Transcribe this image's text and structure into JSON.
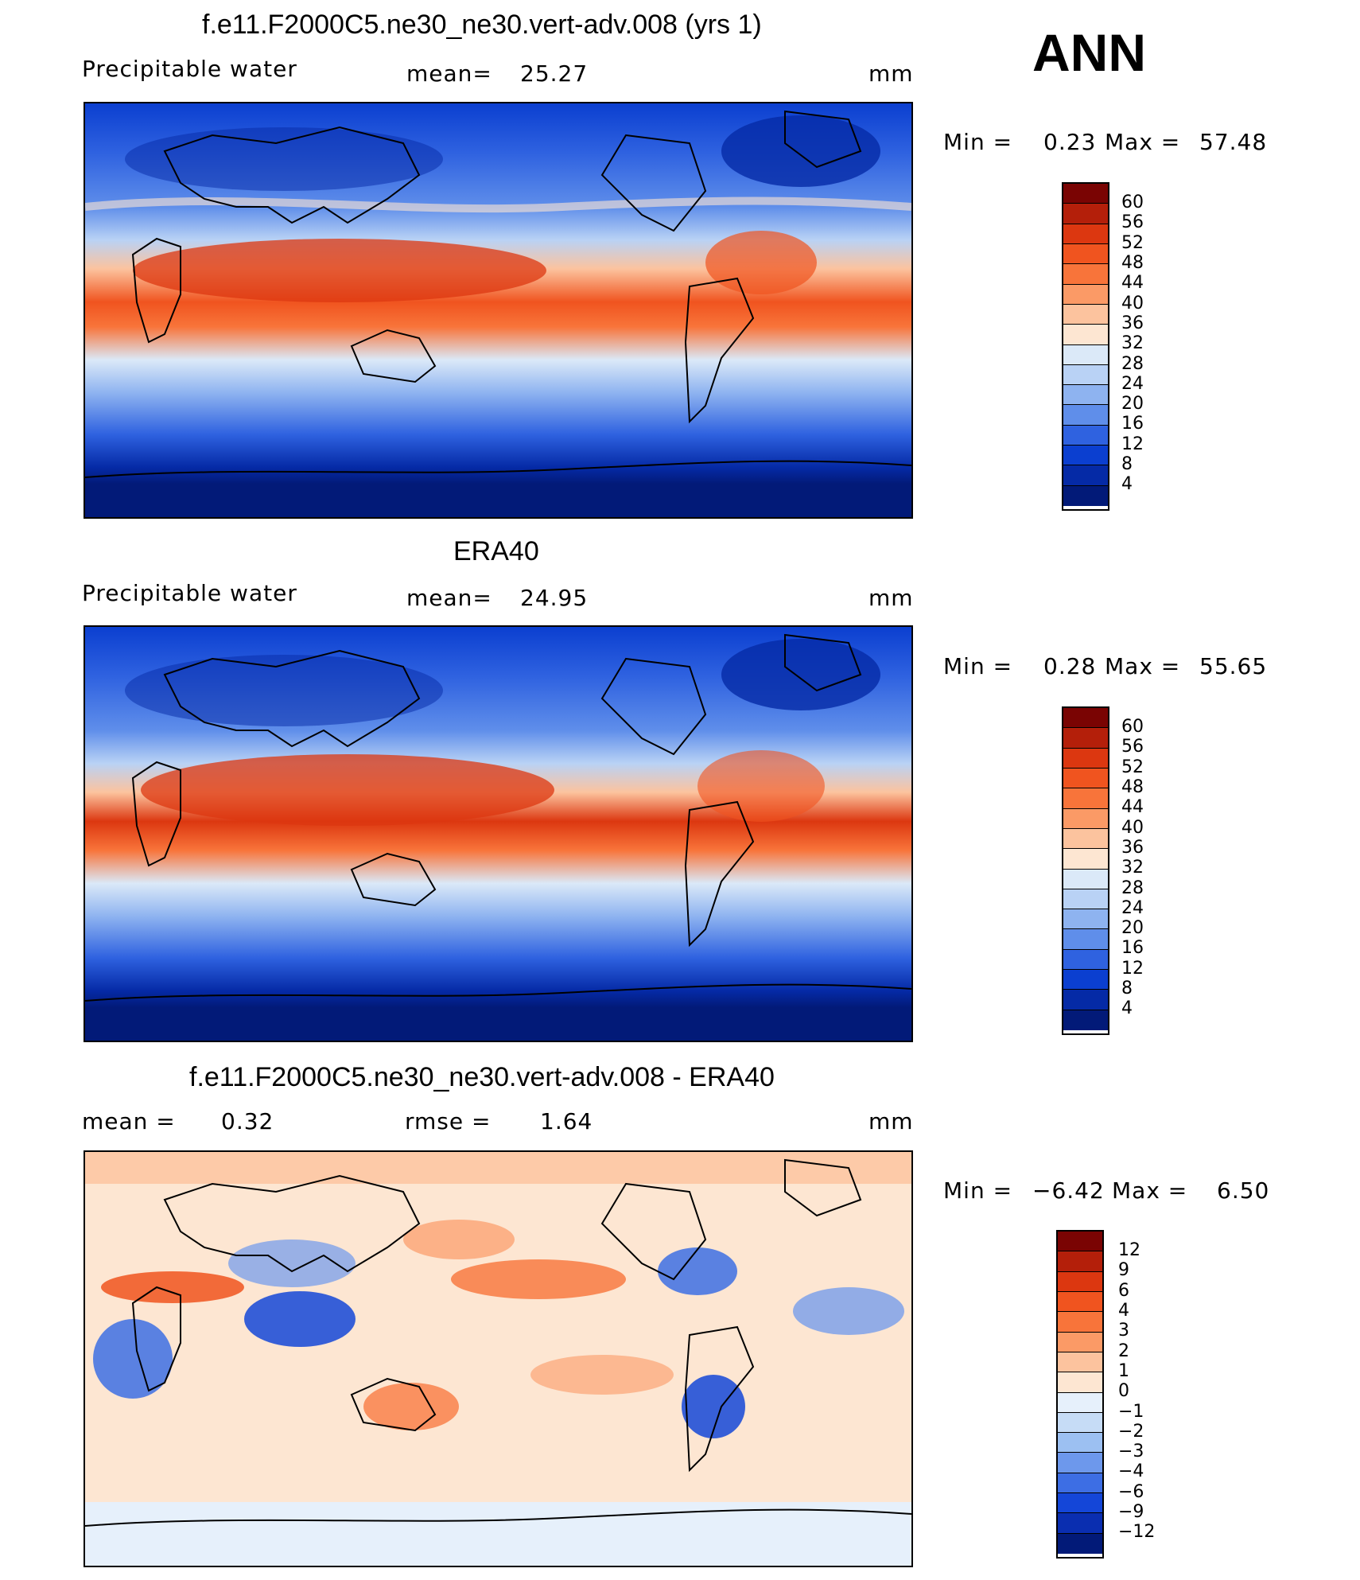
{
  "season": "ANN",
  "panels": [
    {
      "title": "f.e11.F2000C5.ne30_ne30.vert-adv.008 (yrs 1)",
      "variable": "Precipitable water",
      "stat_label": "mean=",
      "stat_value": "25.27",
      "units": "mm",
      "min_label": "Min =",
      "min_value": "0.23",
      "max_label": "Max =",
      "max_value": "57.48",
      "levels": [
        "60",
        "56",
        "52",
        "48",
        "44",
        "40",
        "36",
        "32",
        "28",
        "24",
        "20",
        "16",
        "12",
        "8",
        "4"
      ],
      "colors": [
        "#7a0403",
        "#b41f0a",
        "#dc3710",
        "#f0541f",
        "#f8743a",
        "#fb9a66",
        "#fcc39e",
        "#fde6d2",
        "#dbe9f8",
        "#b9d2f5",
        "#8eb3f0",
        "#5f8eea",
        "#2f62e0",
        "#0b3fd0",
        "#052aa6",
        "#021a78"
      ]
    },
    {
      "title": "ERA40",
      "variable": "Precipitable water",
      "stat_label": "mean=",
      "stat_value": "24.95",
      "units": "mm",
      "min_label": "Min =",
      "min_value": "0.28",
      "max_label": "Max =",
      "max_value": "55.65",
      "levels": [
        "60",
        "56",
        "52",
        "48",
        "44",
        "40",
        "36",
        "32",
        "28",
        "24",
        "20",
        "16",
        "12",
        "8",
        "4"
      ],
      "colors": [
        "#7a0403",
        "#b41f0a",
        "#dc3710",
        "#f0541f",
        "#f8743a",
        "#fb9a66",
        "#fcc39e",
        "#fde6d2",
        "#dbe9f8",
        "#b9d2f5",
        "#8eb3f0",
        "#5f8eea",
        "#2f62e0",
        "#0b3fd0",
        "#052aa6",
        "#021a78"
      ]
    },
    {
      "title": "f.e11.F2000C5.ne30_ne30.vert-adv.008 - ERA40",
      "mean_label": "mean =",
      "mean_value": "0.32",
      "rmse_label": "rmse =",
      "rmse_value": "1.64",
      "units": "mm",
      "min_label": "Min =",
      "min_value": "−6.42",
      "max_label": "Max =",
      "max_value": "6.50",
      "levels": [
        "12",
        "9",
        "6",
        "4",
        "3",
        "2",
        "1",
        "0",
        "−1",
        "−2",
        "−3",
        "−4",
        "−6",
        "−9",
        "−12"
      ],
      "colors": [
        "#7a0403",
        "#b41f0a",
        "#dc3710",
        "#f0541f",
        "#f8743a",
        "#fb9a66",
        "#fcc39e",
        "#fde6d2",
        "#e6f0fb",
        "#c6dcf6",
        "#9cc0f2",
        "#6d98ec",
        "#3d6ee4",
        "#1446d8",
        "#0a2eb0",
        "#021a78"
      ]
    }
  ]
}
